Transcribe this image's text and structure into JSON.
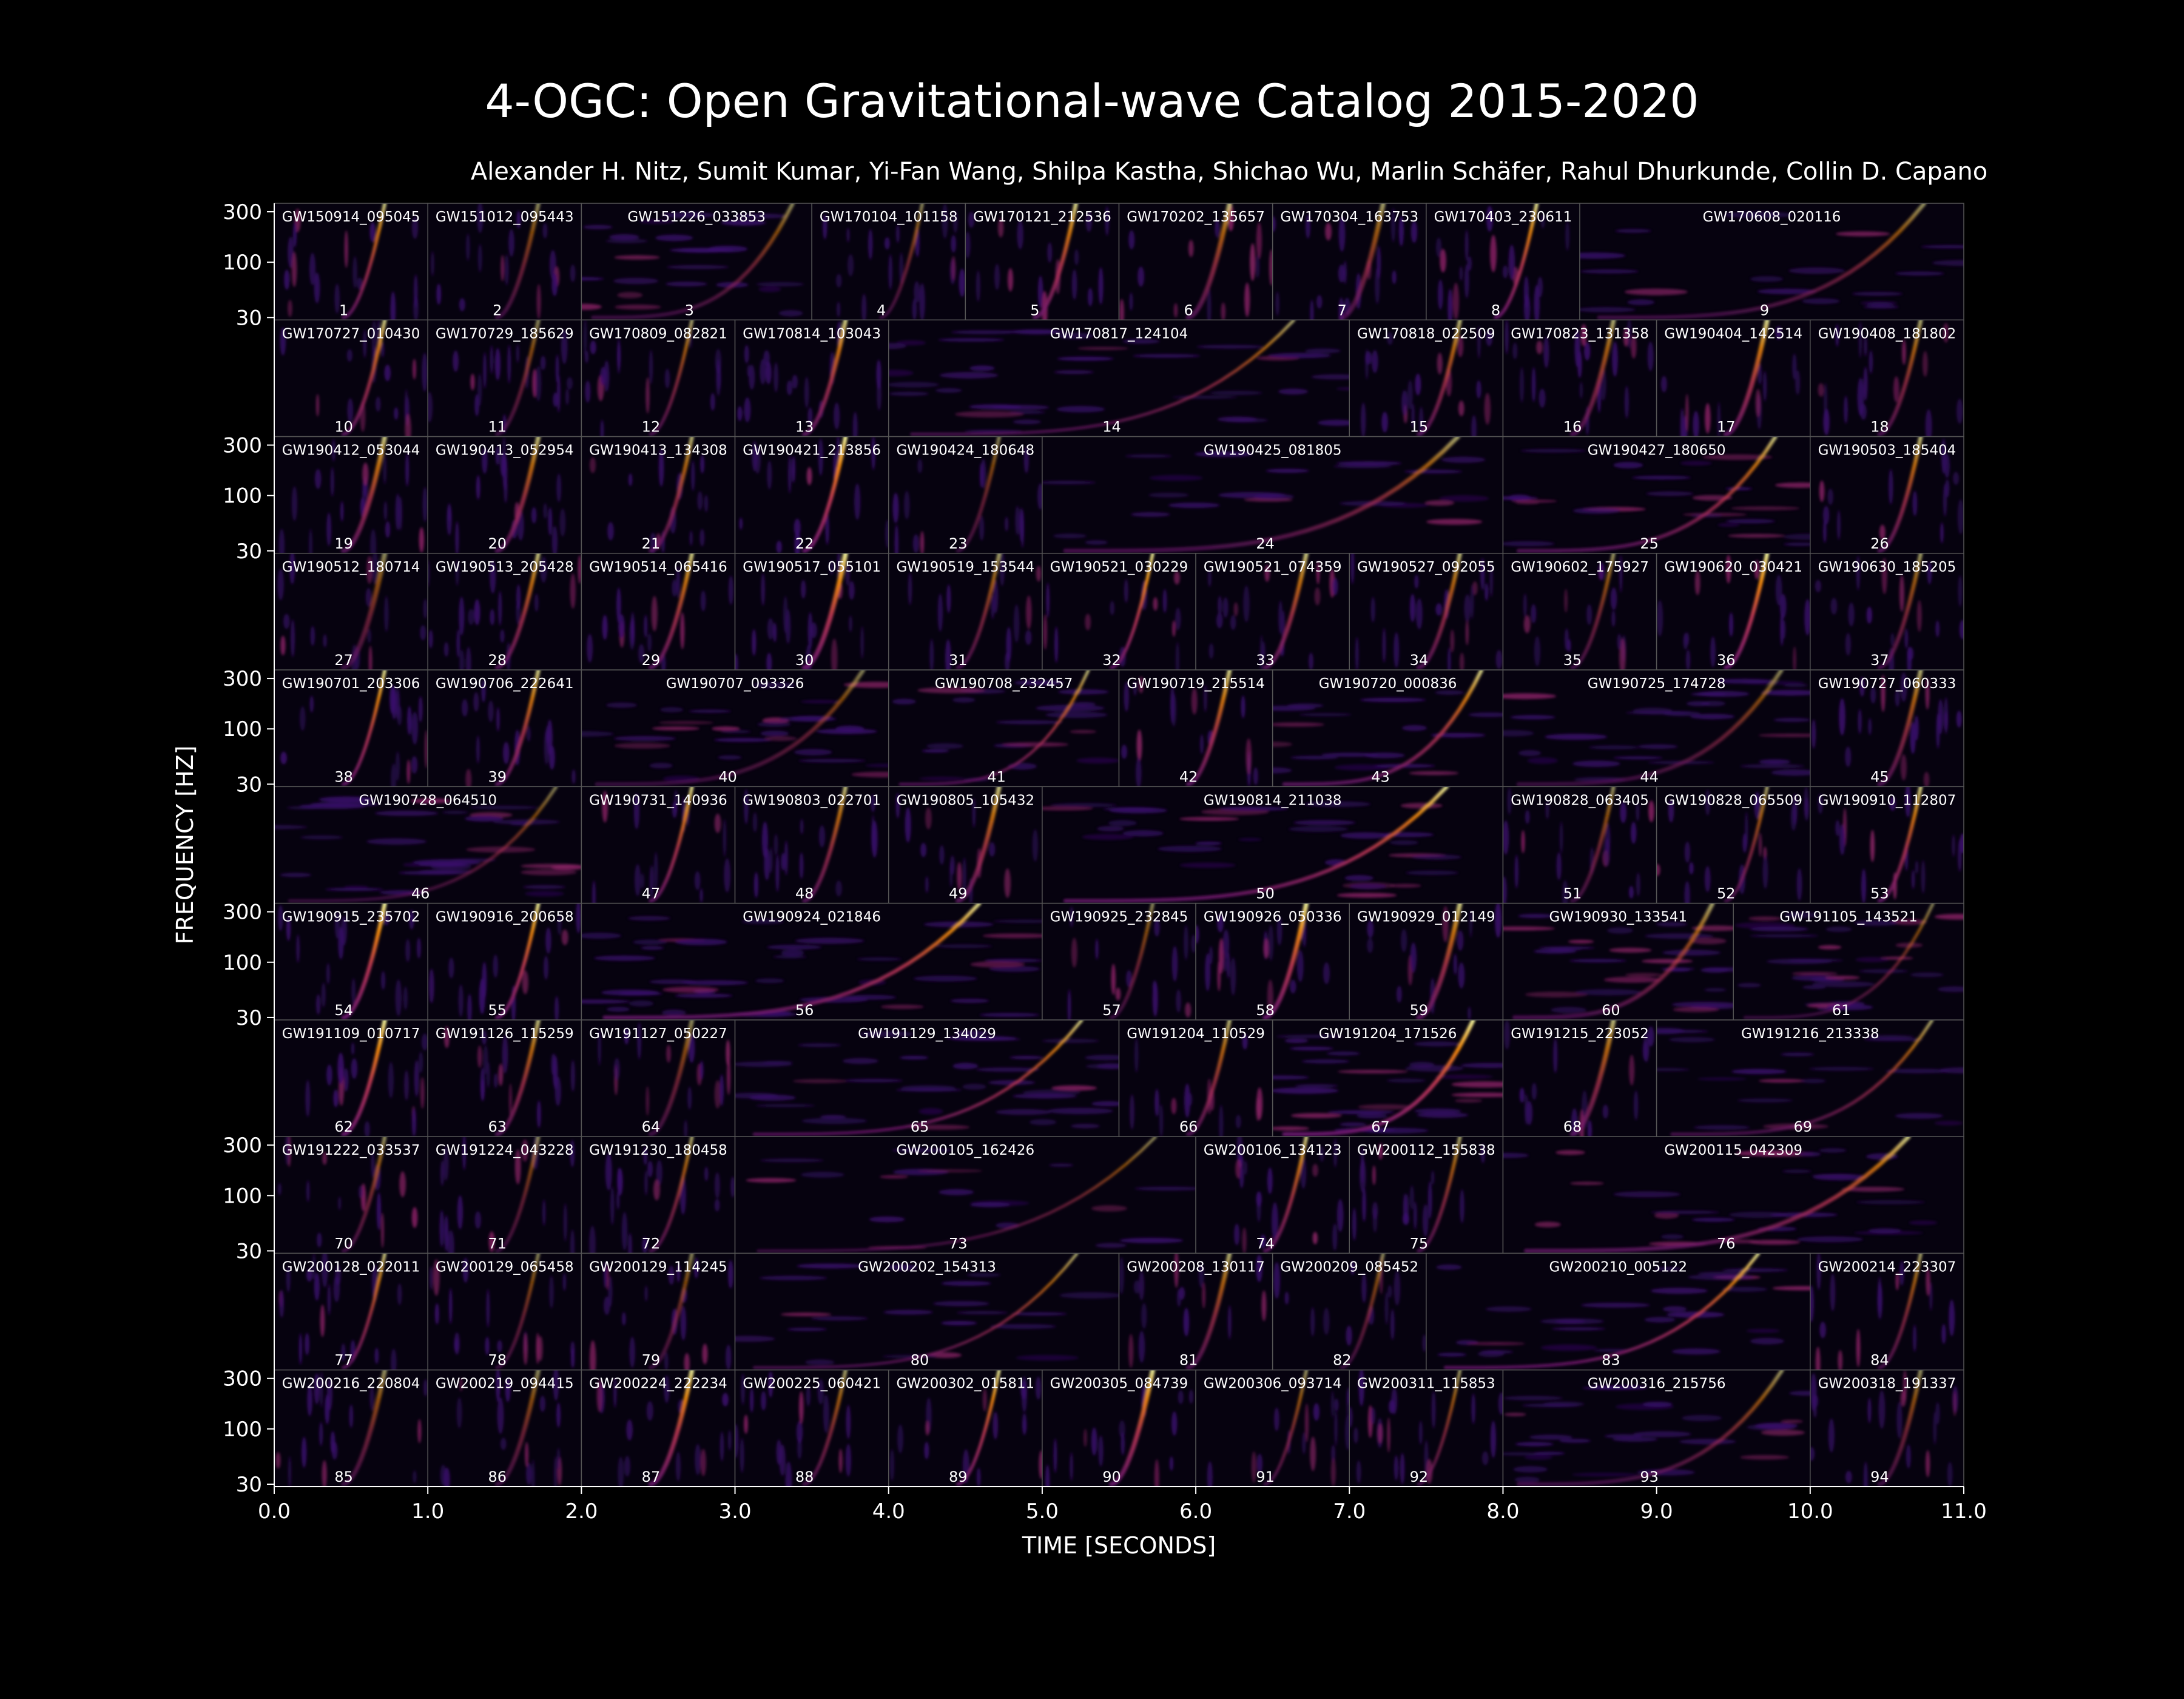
{
  "title": "4-OGC: Open Gravitational-wave Catalog 2015-2020",
  "authors": "Alexander H. Nitz, Sumit Kumar, Yi-Fan Wang, Shilpa Kastha, Shichao Wu, Marlin Schäfer, Rahul Dhurkunde, Collin D. Capano",
  "colors": {
    "background": "#000000",
    "axis": "#ffffff",
    "cell_border": "#555555",
    "colormap": "inferno"
  },
  "chart_data": {
    "type": "heatmap",
    "title": "4-OGC: Open Gravitational-wave Catalog 2015-2020",
    "xlabel": "TIME [SECONDS]",
    "ylabel": "FREQUENCY [HZ]",
    "xlim": [
      0,
      11
    ],
    "xticks": [
      "0.0",
      "1.0",
      "2.0",
      "3.0",
      "4.0",
      "5.0",
      "6.0",
      "7.0",
      "8.0",
      "9.0",
      "10.0",
      "11.0"
    ],
    "y_scale": "log",
    "ylim": [
      30,
      300
    ],
    "yticks": [
      "300",
      "100",
      "30"
    ],
    "ytick_rows": [
      0,
      2,
      4,
      6,
      8,
      10
    ],
    "rows": [
      [
        [
          "GW150914_095045",
          1
        ],
        [
          "GW151012_095443",
          1
        ],
        [
          "GW151226_033853",
          1.5
        ],
        [
          "GW170104_101158",
          1
        ],
        [
          "GW170121_212536",
          1
        ],
        [
          "GW170202_135657",
          1
        ],
        [
          "GW170304_163753",
          1
        ],
        [
          "GW170403_230611",
          1
        ],
        [
          "GW170608_020116",
          2.5
        ]
      ],
      [
        [
          "GW170727_010430",
          1
        ],
        [
          "GW170729_185629",
          1
        ],
        [
          "GW170809_082821",
          1
        ],
        [
          "GW170814_103043",
          1
        ],
        [
          "GW170817_124104",
          3
        ],
        [
          "GW170818_022509",
          1
        ],
        [
          "GW170823_131358",
          1
        ],
        [
          "GW190404_142514",
          1
        ],
        [
          "GW190408_181802",
          1
        ]
      ],
      [
        [
          "GW190412_053044",
          1
        ],
        [
          "GW190413_052954",
          1
        ],
        [
          "GW190413_134308",
          1
        ],
        [
          "GW190421_213856",
          1
        ],
        [
          "GW190424_180648",
          1
        ],
        [
          "GW190425_081805",
          3
        ],
        [
          "GW190427_180650",
          2
        ],
        [
          "GW190503_185404",
          1
        ]
      ],
      [
        [
          "GW190512_180714",
          1
        ],
        [
          "GW190513_205428",
          1
        ],
        [
          "GW190514_065416",
          1
        ],
        [
          "GW190517_055101",
          1
        ],
        [
          "GW190519_153544",
          1
        ],
        [
          "GW190521_030229",
          1
        ],
        [
          "GW190521_074359",
          1
        ],
        [
          "GW190527_092055",
          1
        ],
        [
          "GW190602_175927",
          1
        ],
        [
          "GW190620_030421",
          1
        ],
        [
          "GW190630_185205",
          1
        ]
      ],
      [
        [
          "GW190701_203306",
          1
        ],
        [
          "GW190706_222641",
          1
        ],
        [
          "GW190707_093326",
          2
        ],
        [
          "GW190708_232457",
          1.5
        ],
        [
          "GW190719_215514",
          1
        ],
        [
          "GW190720_000836",
          1.5
        ],
        [
          "GW190725_174728",
          2
        ],
        [
          "GW190727_060333",
          1
        ]
      ],
      [
        [
          "GW190728_064510",
          2
        ],
        [
          "GW190731_140936",
          1
        ],
        [
          "GW190803_022701",
          1
        ],
        [
          "GW190805_105432",
          1
        ],
        [
          "GW190814_211038",
          3
        ],
        [
          "GW190828_063405",
          1
        ],
        [
          "GW190828_065509",
          1
        ],
        [
          "GW190910_112807",
          1
        ]
      ],
      [
        [
          "GW190915_235702",
          1
        ],
        [
          "GW190916_200658",
          1
        ],
        [
          "GW190924_021846",
          3
        ],
        [
          "GW190925_232845",
          1
        ],
        [
          "GW190926_050336",
          1
        ],
        [
          "GW190929_012149",
          1
        ],
        [
          "GW190930_133541",
          1.5
        ],
        [
          "GW191105_143521",
          1.5
        ]
      ],
      [
        [
          "GW191109_010717",
          1
        ],
        [
          "GW191126_115259",
          1
        ],
        [
          "GW191127_050227",
          1
        ],
        [
          "GW191129_134029",
          2.5
        ],
        [
          "GW191204_110529",
          1
        ],
        [
          "GW191204_171526",
          1.5
        ],
        [
          "GW191215_223052",
          1
        ],
        [
          "GW191216_213338",
          2
        ]
      ],
      [
        [
          "GW191222_033537",
          1
        ],
        [
          "GW191224_043228",
          1
        ],
        [
          "GW191230_180458",
          1
        ],
        [
          "GW200105_162426",
          3
        ],
        [
          "GW200106_134123",
          1
        ],
        [
          "GW200112_155838",
          1
        ],
        [
          "GW200115_042309",
          3
        ]
      ],
      [
        [
          "GW200128_022011",
          1
        ],
        [
          "GW200129_065458",
          1
        ],
        [
          "GW200129_114245",
          1
        ],
        [
          "GW200202_154313",
          2.5
        ],
        [
          "GW200208_130117",
          1
        ],
        [
          "GW200209_085452",
          1
        ],
        [
          "GW200210_005122",
          2.5
        ],
        [
          "GW200214_223307",
          1
        ]
      ],
      [
        [
          "GW200216_220804",
          1
        ],
        [
          "GW200219_094415",
          1
        ],
        [
          "GW200224_222234",
          1
        ],
        [
          "GW200225_060421",
          1
        ],
        [
          "GW200302_015811",
          1
        ],
        [
          "GW200305_084739",
          1
        ],
        [
          "GW200306_093714",
          1
        ],
        [
          "GW200311_115853",
          1
        ],
        [
          "GW200316_215756",
          2
        ],
        [
          "GW200318_191337",
          1
        ]
      ]
    ]
  }
}
